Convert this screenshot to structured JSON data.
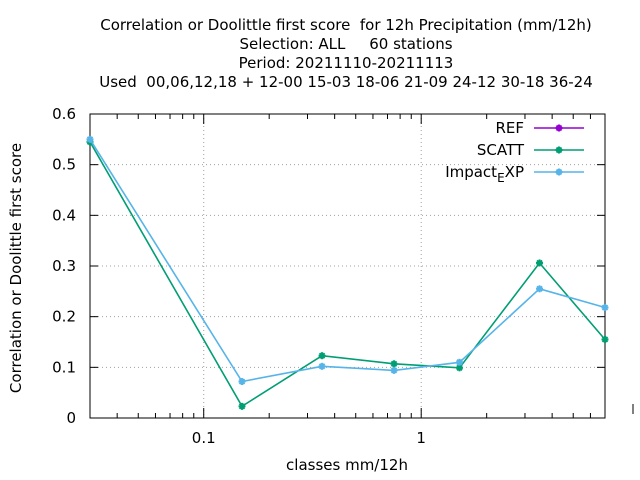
{
  "chart_data": {
    "type": "line",
    "title_lines": [
      "Correlation or Doolittle first score  for 12h Precipitation (mm/12h)",
      "Selection: ALL     60 stations",
      "Period: 20211110-20211113",
      "Used  00,06,12,18 + 12-00 15-03 18-06 21-09 24-12 30-18 36-24"
    ],
    "xlabel": "classes mm/12h",
    "ylabel": "Correlation or Doolittle first score",
    "xscale": "log",
    "xlim": [
      0.03,
      7.0
    ],
    "ylim": [
      0,
      0.6
    ],
    "x_ticks": [
      {
        "value": 0.1,
        "label": "0.1"
      },
      {
        "value": 1,
        "label": "1"
      }
    ],
    "y_ticks": [
      {
        "value": 0,
        "label": "0"
      },
      {
        "value": 0.1,
        "label": "0.1"
      },
      {
        "value": 0.2,
        "label": "0.2"
      },
      {
        "value": 0.3,
        "label": "0.3"
      },
      {
        "value": 0.4,
        "label": "0.4"
      },
      {
        "value": 0.5,
        "label": "0.5"
      },
      {
        "value": 0.6,
        "label": "0.6"
      }
    ],
    "grid": true,
    "legend_position": "top-right",
    "series": [
      {
        "name": "REF",
        "color": "#9400d3",
        "x": [],
        "y": []
      },
      {
        "name": "SCATT",
        "color": "#009e73",
        "x": [
          0.03,
          0.15,
          0.35,
          0.75,
          1.5,
          3.5,
          7.0
        ],
        "y": [
          0.545,
          0.023,
          0.123,
          0.107,
          0.099,
          0.306,
          0.155
        ]
      },
      {
        "name": "Impact_EXP",
        "legend_main": "Impact",
        "legend_sub": "E",
        "legend_tail": "XP",
        "color": "#56b4e9",
        "x": [
          0.03,
          0.15,
          0.35,
          0.75,
          1.5,
          3.5,
          7.0
        ],
        "y": [
          0.55,
          0.072,
          0.102,
          0.094,
          0.11,
          0.255,
          0.218
        ]
      }
    ]
  }
}
